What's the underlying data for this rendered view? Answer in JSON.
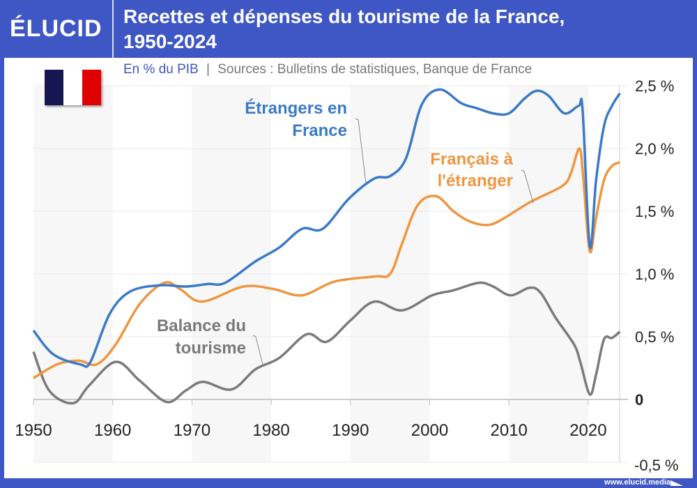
{
  "header": {
    "logo": "ÉLUCID",
    "title_line1": "Recettes et dépenses du tourisme de la France,",
    "title_line2": "1950-2024"
  },
  "subtitle": {
    "unit": "En % du PIB",
    "separator": "|",
    "sources": "Sources : Bulletins de statistiques, Banque de France"
  },
  "flag": {
    "colors": [
      "#161650",
      "#ffffff",
      "#e00000"
    ]
  },
  "footer": {
    "url": "www.elucid.media"
  },
  "colors": {
    "frame": "#3f57c4",
    "recettes": "#3a7ac8",
    "depenses": "#f0953f",
    "balance": "#7a7a7a",
    "negative_tick": "#e02020"
  },
  "chart_data": {
    "type": "line",
    "title": "Recettes et dépenses du tourisme de la France, 1950-2024",
    "xlabel": "",
    "ylabel": "En % du PIB",
    "xlim": [
      1950,
      2024
    ],
    "ylim": [
      -0.5,
      2.5
    ],
    "x_ticks": [
      "1950",
      "1960",
      "1970",
      "1980",
      "1990",
      "2000",
      "2010",
      "2020"
    ],
    "y_ticks": [
      {
        "value": 2.5,
        "label": "2,5 %"
      },
      {
        "value": 2.0,
        "label": "2,0 %"
      },
      {
        "value": 1.5,
        "label": "1,5 %"
      },
      {
        "value": 1.0,
        "label": "1,0 %"
      },
      {
        "value": 0.5,
        "label": "0,5 %"
      },
      {
        "value": 0,
        "label": "0"
      },
      {
        "value": -0.5,
        "label": "-0,5 %"
      }
    ],
    "grid": true,
    "y_axis_side": "right",
    "series": [
      {
        "name": "Étrangers en France",
        "label_lines": [
          "Étrangers en",
          "France"
        ],
        "x": [
          1950,
          1952.5,
          1955.9,
          1957.2,
          1959.6,
          1962.2,
          1966,
          1969.2,
          1972,
          1974.2,
          1978,
          1981,
          1983.9,
          1986.5,
          1989.8,
          1993,
          1995,
          1997,
          1999,
          2001.3,
          2004,
          2006,
          2008,
          2010,
          2012,
          2013.5,
          2015,
          2017,
          2018.8,
          2019.3,
          2020.2,
          2021,
          2022,
          2023,
          2024
        ],
        "y": [
          0.55,
          0.36,
          0.28,
          0.3,
          0.68,
          0.86,
          0.91,
          0.9,
          0.92,
          0.93,
          1.1,
          1.21,
          1.36,
          1.36,
          1.6,
          1.76,
          1.78,
          1.92,
          2.35,
          2.47,
          2.36,
          2.32,
          2.28,
          2.28,
          2.4,
          2.46,
          2.42,
          2.28,
          2.34,
          2.3,
          1.22,
          1.75,
          2.18,
          2.34,
          2.44
        ]
      },
      {
        "name": "Français à l'étranger",
        "label_lines": [
          "Français à",
          "l'étranger"
        ],
        "x": [
          1950,
          1953,
          1955.7,
          1958,
          1960.4,
          1963.4,
          1966.5,
          1968.5,
          1971.3,
          1976.5,
          1980.3,
          1983.9,
          1988,
          1993,
          1995,
          1996.5,
          1998.5,
          2000.8,
          2003,
          2005,
          2007.2,
          2009,
          2012.6,
          2016.7,
          2017.8,
          2018.9,
          2019.4,
          2020.2,
          2021,
          2022,
          2023,
          2024
        ],
        "y": [
          0.17,
          0.28,
          0.31,
          0.28,
          0.44,
          0.76,
          0.93,
          0.88,
          0.78,
          0.9,
          0.88,
          0.83,
          0.94,
          0.98,
          1.0,
          1.24,
          1.55,
          1.62,
          1.5,
          1.42,
          1.39,
          1.43,
          1.57,
          1.7,
          1.8,
          2.0,
          1.75,
          1.18,
          1.45,
          1.75,
          1.86,
          1.89
        ]
      },
      {
        "name": "Balance du tourisme",
        "label_lines": [
          "Balance du",
          "tourisme"
        ],
        "x": [
          1950,
          1952,
          1955,
          1957,
          1960.4,
          1963.4,
          1966.8,
          1969.2,
          1971.4,
          1975,
          1978,
          1981,
          1984.5,
          1987,
          1990,
          1993,
          1996.5,
          2000.3,
          2003,
          2006.2,
          2008,
          2010.2,
          2012.6,
          2014,
          2015.9,
          2018.2,
          2019,
          2020.2,
          2021,
          2022,
          2023,
          2024
        ],
        "y": [
          0.38,
          0.07,
          -0.03,
          0.11,
          0.3,
          0.15,
          -0.02,
          0.07,
          0.14,
          0.08,
          0.24,
          0.33,
          0.52,
          0.46,
          0.63,
          0.78,
          0.71,
          0.83,
          0.87,
          0.93,
          0.9,
          0.83,
          0.89,
          0.85,
          0.65,
          0.44,
          0.3,
          0.04,
          0.2,
          0.48,
          0.49,
          0.54
        ]
      }
    ]
  }
}
